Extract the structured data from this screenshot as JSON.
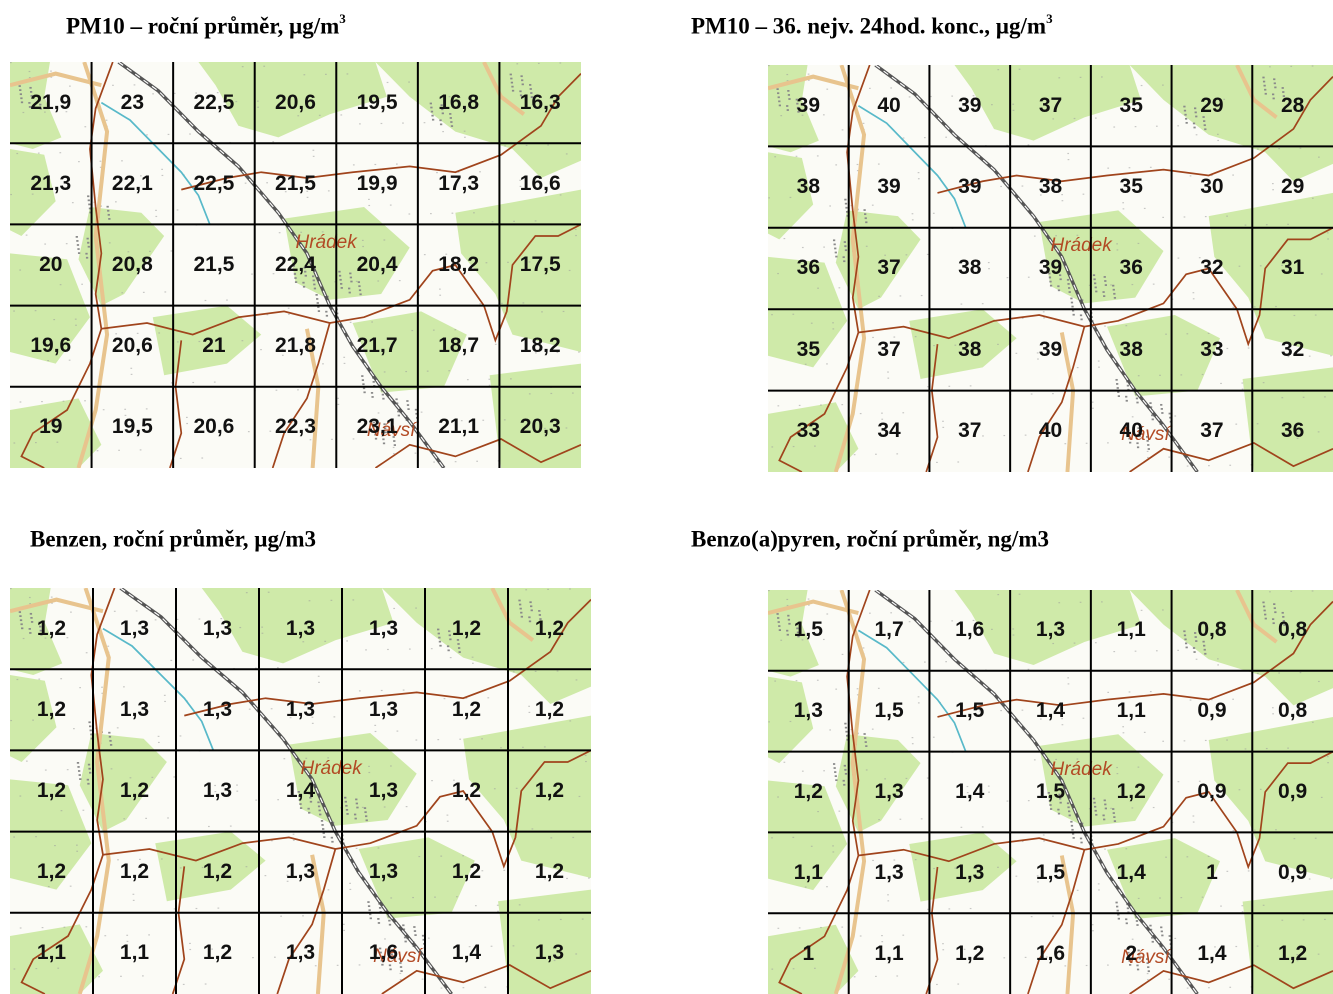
{
  "panels": [
    {
      "id": "pm10-annual",
      "title": "PM10 – roční průměr, µg/m",
      "title_sup": "3",
      "grid": [
        [
          "21,9",
          "23",
          "22,5",
          "20,6",
          "19,5",
          "16,8",
          "16,3"
        ],
        [
          "21,3",
          "22,1",
          "22,5",
          "21,5",
          "19,9",
          "17,3",
          "16,6"
        ],
        [
          "20",
          "20,8",
          "21,5",
          "22,4",
          "20,4",
          "18,2",
          "17,5"
        ],
        [
          "19,6",
          "20,6",
          "21",
          "21,8",
          "21,7",
          "18,7",
          "18,2"
        ],
        [
          "19",
          "19,5",
          "20,6",
          "22,3",
          "23,1",
          "21,1",
          "20,3"
        ]
      ]
    },
    {
      "id": "pm10-36th",
      "title": "PM10 – 36. nejv. 24hod. konc., µg/m",
      "title_sup": "3",
      "grid": [
        [
          "39",
          "40",
          "39",
          "37",
          "35",
          "29",
          "28"
        ],
        [
          "38",
          "39",
          "39",
          "38",
          "35",
          "30",
          "29"
        ],
        [
          "36",
          "37",
          "38",
          "39",
          "36",
          "32",
          "31"
        ],
        [
          "35",
          "37",
          "38",
          "39",
          "38",
          "33",
          "32"
        ],
        [
          "33",
          "34",
          "37",
          "40",
          "40",
          "37",
          "36"
        ]
      ]
    },
    {
      "id": "benzene",
      "title": "Benzen, roční průměr, µg/m3",
      "title_sup": "",
      "grid": [
        [
          "1,2",
          "1,3",
          "1,3",
          "1,3",
          "1,3",
          "1,2",
          "1,2"
        ],
        [
          "1,2",
          "1,3",
          "1,3",
          "1,3",
          "1,3",
          "1,2",
          "1,2"
        ],
        [
          "1,2",
          "1,2",
          "1,3",
          "1,4",
          "1,3",
          "1,2",
          "1,2"
        ],
        [
          "1,2",
          "1,2",
          "1,2",
          "1,3",
          "1,3",
          "1,2",
          "1,2"
        ],
        [
          "1,1",
          "1,1",
          "1,2",
          "1,3",
          "1,6",
          "1,4",
          "1,3"
        ]
      ]
    },
    {
      "id": "benzo-a-pyrene",
      "title": "Benzo(a)pyren, roční průměr, ng/m3",
      "title_sup": "",
      "grid": [
        [
          "1,5",
          "1,7",
          "1,6",
          "1,3",
          "1,1",
          "0,8",
          "0,8"
        ],
        [
          "1,3",
          "1,5",
          "1,5",
          "1,4",
          "1,1",
          "0,9",
          "0,8"
        ],
        [
          "1,2",
          "1,3",
          "1,4",
          "1,5",
          "1,2",
          "0,9",
          "0,9"
        ],
        [
          "1,1",
          "1,3",
          "1,3",
          "1,5",
          "1,4",
          "1",
          "0,9"
        ],
        [
          "1",
          "1,1",
          "1,2",
          "1,6",
          "2",
          "1,4",
          "1,2"
        ]
      ]
    }
  ],
  "place_labels": {
    "town_1": "Hrádek",
    "town_2": "Návsí"
  },
  "colors": {
    "forest": "#cfeaa9",
    "boundary": "#a0441c",
    "railway": "#555555",
    "river": "#58b9c9",
    "road": "#e8c48e",
    "grid_line": "#000000",
    "label_text": "#b24a24"
  }
}
